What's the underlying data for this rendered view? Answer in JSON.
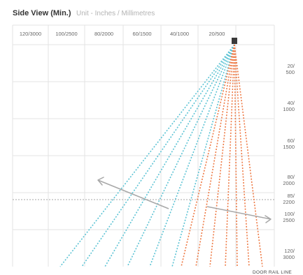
{
  "header": {
    "title": "Side View (Min.)",
    "subtitle": "Unit - Inches / Millimetres"
  },
  "chart_data": {
    "type": "diagram",
    "x_ticks": [
      "120/3000",
      "100/2500",
      "80/2000",
      "60/1500",
      "40/1000",
      "20/500"
    ],
    "y_ticks": [
      {
        "label": [
          "20/",
          "500"
        ],
        "value": 20
      },
      {
        "label": [
          "40/",
          "1000"
        ],
        "value": 40
      },
      {
        "label": [
          "60/",
          "1500"
        ],
        "value": 60
      },
      {
        "label": [
          "80/",
          "2000"
        ],
        "value": 80
      },
      {
        "label": [
          "85/",
          "2200"
        ],
        "value": 85
      },
      {
        "label": [
          "100/",
          "2500"
        ],
        "value": 100
      },
      {
        "label": [
          "120/",
          "3000"
        ],
        "value": 120
      }
    ],
    "reference_line_label": "DOOR RAIL LINE",
    "reference_line_value": 85,
    "colors": {
      "grid": "#e3e3e3",
      "blue_beam": "#5cc3d4",
      "orange_beam": "#ee7a45",
      "arrow": "#a8a8a8",
      "reference_line": "#b8b8b8",
      "sensor": "#3a3a3a"
    }
  }
}
